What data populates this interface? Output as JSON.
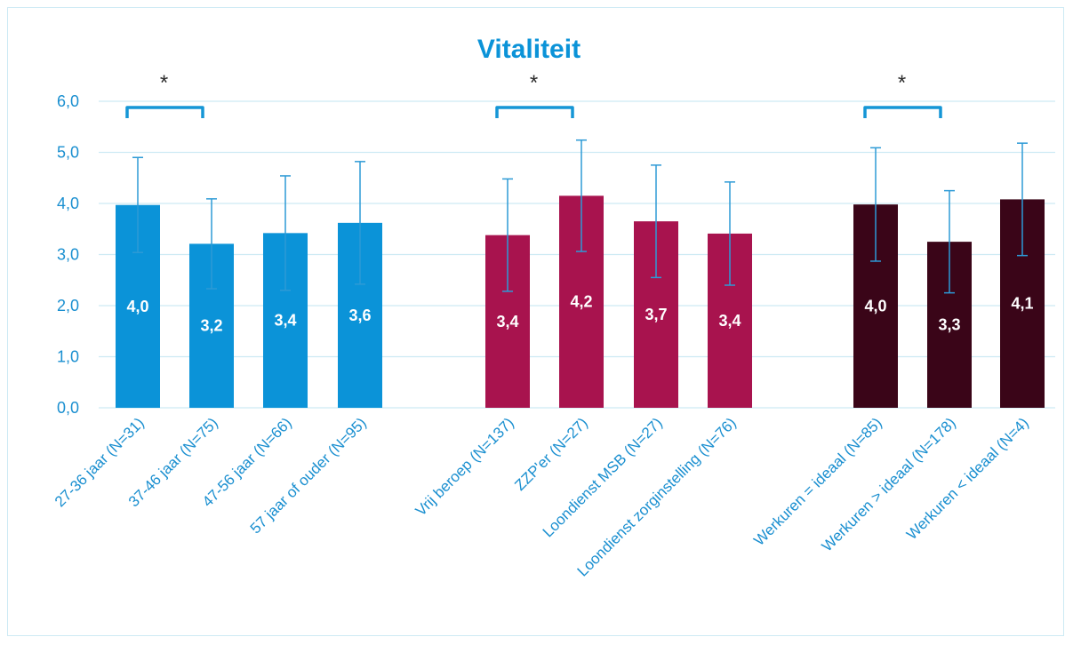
{
  "chart_data": {
    "type": "bar",
    "title": "Vitaliteit",
    "xlabel": "",
    "ylabel": "",
    "ylim": [
      0,
      6
    ],
    "yticks": [
      "0,0",
      "1,0",
      "2,0",
      "3,0",
      "4,0",
      "5,0",
      "6,0"
    ],
    "grid": true,
    "categories": [
      "27-36 jaar (N=31)",
      "37-46 jaar (N=75)",
      "47-56 jaar (N=66)",
      "57 jaar of ouder (N=95)",
      "Vrij beroep (N=137)",
      "ZZP'er (N=27)",
      "Loondienst MSB (N=27)",
      "Loondienst zorginstelling (N=76)",
      "Werkuren = ideaal (N=85)",
      "Werkuren > ideaal (N=178)",
      "Werkuren < ideaal (N=4)"
    ],
    "groups": [
      {
        "color": "#0b93d8",
        "indices": [
          0,
          1,
          2,
          3
        ]
      },
      {
        "color": "#a8134e",
        "indices": [
          4,
          5,
          6,
          7
        ]
      },
      {
        "color": "#3a0518",
        "indices": [
          8,
          9,
          10
        ]
      }
    ],
    "values": [
      3.97,
      3.21,
      3.42,
      3.62,
      3.38,
      4.15,
      3.65,
      3.41,
      3.98,
      3.25,
      4.08
    ],
    "data_labels": [
      "4,0",
      "3,2",
      "3,4",
      "3,6",
      "3,4",
      "4,2",
      "3,7",
      "3,4",
      "4,0",
      "3,3",
      "4,1"
    ],
    "error": [
      0.93,
      0.88,
      1.12,
      1.2,
      1.1,
      1.09,
      1.1,
      1.01,
      1.11,
      1.0,
      1.1
    ],
    "significance": [
      {
        "from": 0,
        "to": 1,
        "label": "*"
      },
      {
        "from": 4,
        "to": 5,
        "label": "*"
      },
      {
        "from": 8,
        "to": 9,
        "label": "*"
      }
    ],
    "colors": {
      "error_bar": "#2d9ad6",
      "grid": "#cdeaf4",
      "bracket": "#1596d6"
    }
  }
}
